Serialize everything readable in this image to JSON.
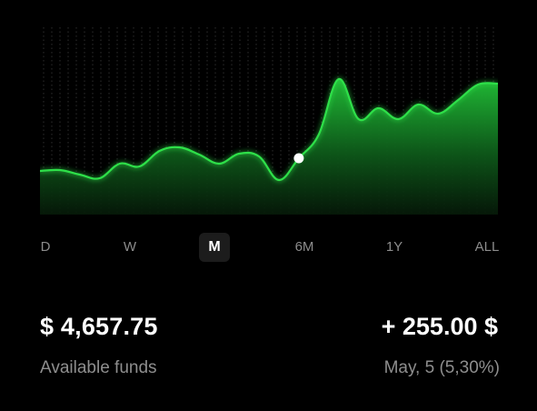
{
  "chart": {
    "color": "#22c43a",
    "glow_color": "#2fe04a",
    "marker_color": "#ffffff",
    "grid": "vertical dotted",
    "values": [
      48,
      49,
      44,
      40,
      56,
      53,
      70,
      74,
      66,
      56,
      67,
      64,
      38,
      62,
      88,
      149,
      105,
      117,
      105,
      121,
      111,
      126,
      143,
      144
    ],
    "marker_index": 13,
    "ylim": [
      0,
      206
    ]
  },
  "ranges": [
    {
      "label": "D",
      "active": false
    },
    {
      "label": "W",
      "active": false
    },
    {
      "label": "M",
      "active": true
    },
    {
      "label": "6M",
      "active": false
    },
    {
      "label": "1Y",
      "active": false
    },
    {
      "label": "ALL",
      "active": false
    }
  ],
  "summary": {
    "balance": "$ 4,657.75",
    "balance_label": "Available funds",
    "change": "+ 255.00 $",
    "change_detail": "May, 5 (5,30%)"
  }
}
